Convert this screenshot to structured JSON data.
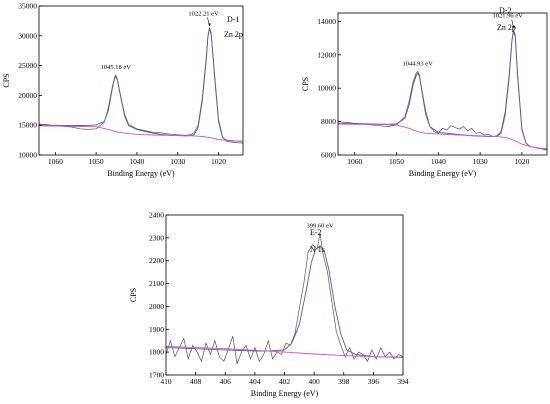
{
  "chart_data": [
    {
      "type": "line",
      "id": "zn-d1",
      "panel_label": "D-1",
      "element_label": "Zn 2p",
      "xlabel": "Binding Energy (eV)",
      "ylabel": "CPS",
      "xlim": [
        1064,
        1014
      ],
      "ylim": [
        10000,
        35000
      ],
      "xticks": [
        1060,
        1050,
        1040,
        1030,
        1020
      ],
      "yticks": [
        10000,
        15000,
        20000,
        25000,
        30000,
        35000
      ],
      "peaks": [
        {
          "x": 1045.18,
          "label": "1045.18 eV"
        },
        {
          "x": 1022.21,
          "label": "1022.21 eV"
        }
      ],
      "series": [
        {
          "color": "#555555",
          "x": [
            1064,
            1062,
            1060,
            1058,
            1056,
            1054,
            1052,
            1050,
            1048,
            1047,
            1046,
            1045.5,
            1045.2,
            1044.8,
            1044,
            1043,
            1042,
            1040,
            1038,
            1036,
            1034,
            1032,
            1030,
            1028,
            1027,
            1026,
            1025,
            1024,
            1023,
            1022.6,
            1022.2,
            1021.8,
            1021,
            1020,
            1019,
            1018,
            1016,
            1014
          ],
          "y": [
            15200,
            15100,
            14900,
            14800,
            14700,
            14400,
            14300,
            14400,
            15500,
            18000,
            21500,
            23000,
            23400,
            22800,
            20000,
            16800,
            15100,
            14400,
            14100,
            13800,
            13700,
            13500,
            13400,
            13300,
            13400,
            13700,
            15000,
            19500,
            26500,
            30000,
            31400,
            30500,
            24000,
            16000,
            13000,
            12300,
            12100,
            12000
          ]
        },
        {
          "color": "#5a5aa8",
          "x": [
            1064,
            1062,
            1060,
            1058,
            1056,
            1054,
            1052,
            1050,
            1048,
            1047,
            1046,
            1045.5,
            1045.2,
            1044.8,
            1044,
            1043,
            1042,
            1040,
            1038,
            1036,
            1034,
            1032,
            1030,
            1028,
            1027,
            1026,
            1025,
            1024,
            1023,
            1022.6,
            1022.2,
            1021.8,
            1021,
            1020,
            1019,
            1018,
            1016,
            1014
          ],
          "y": [
            15000,
            14990,
            14980,
            14970,
            14960,
            14950,
            14960,
            15050,
            15600,
            17500,
            21200,
            22800,
            23200,
            22600,
            19800,
            16500,
            14900,
            14300,
            13950,
            13650,
            13450,
            13300,
            13250,
            13200,
            13250,
            13400,
            14600,
            19000,
            26000,
            29800,
            31200,
            30200,
            23500,
            15600,
            12900,
            12500,
            12350,
            12300
          ]
        },
        {
          "color": "#cc55cc",
          "x": [
            1064,
            1060,
            1055,
            1050,
            1047,
            1045,
            1043,
            1040,
            1036,
            1030,
            1026,
            1024,
            1022,
            1020,
            1018,
            1016,
            1014
          ],
          "y": [
            14900,
            14850,
            14800,
            14750,
            14300,
            13900,
            13650,
            13450,
            13350,
            13250,
            13200,
            13100,
            12900,
            12600,
            12450,
            12350,
            12300
          ]
        }
      ]
    },
    {
      "type": "line",
      "id": "zn-d2",
      "panel_label": "D-2",
      "element_label": "Zn 2p",
      "xlabel": "Binding Energy (eV)",
      "ylabel": "CPS",
      "xlim": [
        1064,
        1014
      ],
      "ylim": [
        6000,
        14500
      ],
      "xticks": [
        1060,
        1050,
        1040,
        1030,
        1020
      ],
      "yticks": [
        6000,
        8000,
        10000,
        12000,
        14000
      ],
      "peaks": [
        {
          "x": 1044.93,
          "label": "1044.93 eV"
        },
        {
          "x": 1021.96,
          "label": "1021.96 eV"
        }
      ],
      "series": [
        {
          "color": "#555555",
          "x": [
            1064,
            1062,
            1060,
            1058,
            1056,
            1054,
            1052,
            1050,
            1048,
            1047,
            1046,
            1045.3,
            1044.9,
            1044.5,
            1044,
            1043,
            1042,
            1041,
            1040,
            1039,
            1038,
            1037,
            1036,
            1035,
            1034,
            1033,
            1032,
            1031,
            1030,
            1029,
            1028,
            1027,
            1026,
            1025,
            1024,
            1023,
            1022.4,
            1022,
            1021.6,
            1021,
            1020,
            1019,
            1018,
            1016,
            1014
          ],
          "y": [
            8000,
            7950,
            7900,
            7850,
            7800,
            7750,
            7700,
            7800,
            8300,
            9200,
            10400,
            10900,
            11000,
            10800,
            10000,
            8600,
            7700,
            7400,
            7300,
            7600,
            7500,
            7750,
            7650,
            7550,
            7700,
            7450,
            7600,
            7300,
            7350,
            7200,
            7250,
            7100,
            7150,
            7400,
            8600,
            11000,
            12900,
            13500,
            13200,
            10800,
            7600,
            6700,
            6500,
            6400,
            6300
          ]
        },
        {
          "color": "#5a5aa8",
          "x": [
            1064,
            1060,
            1056,
            1052,
            1050,
            1048,
            1047,
            1046,
            1045.3,
            1044.9,
            1044.5,
            1044,
            1043,
            1042,
            1040,
            1036,
            1032,
            1028,
            1026,
            1025,
            1024,
            1023,
            1022.4,
            1022,
            1021.6,
            1021,
            1020,
            1019,
            1018,
            1016,
            1014
          ],
          "y": [
            7900,
            7880,
            7860,
            7840,
            7860,
            8200,
            9000,
            10200,
            10750,
            10900,
            10700,
            9900,
            8400,
            7700,
            7350,
            7250,
            7150,
            7100,
            7120,
            7300,
            8400,
            10800,
            12800,
            13400,
            13100,
            10600,
            7500,
            6700,
            6500,
            6400,
            6350
          ]
        },
        {
          "color": "#cc55cc",
          "x": [
            1064,
            1060,
            1055,
            1050,
            1047,
            1045,
            1043,
            1040,
            1035,
            1030,
            1026,
            1024,
            1022,
            1020,
            1018,
            1016,
            1014
          ],
          "y": [
            7850,
            7840,
            7830,
            7800,
            7600,
            7400,
            7300,
            7250,
            7200,
            7150,
            7100,
            7050,
            6900,
            6650,
            6500,
            6420,
            6380
          ]
        }
      ]
    },
    {
      "type": "line",
      "id": "n1s-e2",
      "panel_label": "E-2",
      "element_label": "N 1s",
      "xlabel": "Binding Energy (eV)",
      "ylabel": "CPS",
      "xlim": [
        410,
        394
      ],
      "ylim": [
        1700,
        2400
      ],
      "xticks": [
        410,
        408,
        406,
        404,
        402,
        400,
        398,
        396,
        394
      ],
      "yticks": [
        1700,
        1800,
        1900,
        2000,
        2100,
        2200,
        2300,
        2400
      ],
      "peaks": [
        {
          "x": 399.6,
          "label": "399.60 eV"
        }
      ],
      "series": [
        {
          "color": "#555555",
          "x": [
            410,
            409.7,
            409.4,
            409.1,
            408.8,
            408.5,
            408.2,
            407.9,
            407.6,
            407.3,
            407.0,
            406.7,
            406.4,
            406.1,
            405.8,
            405.5,
            405.2,
            404.9,
            404.6,
            404.3,
            404.0,
            403.7,
            403.4,
            403.1,
            402.8,
            402.5,
            402.2,
            401.9,
            401.6,
            401.3,
            401.0,
            400.7,
            400.4,
            400.1,
            399.8,
            399.6,
            399.4,
            399.1,
            398.8,
            398.5,
            398.2,
            397.9,
            397.6,
            397.3,
            397.0,
            396.7,
            396.4,
            396.1,
            395.8,
            395.5,
            395.2,
            394.9,
            394.6,
            394.3,
            394.0
          ],
          "y": [
            1790,
            1850,
            1780,
            1820,
            1860,
            1770,
            1830,
            1800,
            1760,
            1840,
            1790,
            1850,
            1780,
            1760,
            1810,
            1870,
            1750,
            1800,
            1830,
            1770,
            1820,
            1760,
            1790,
            1850,
            1770,
            1800,
            1790,
            1840,
            1830,
            1880,
            1990,
            2100,
            2240,
            2270,
            2250,
            2320,
            2230,
            2150,
            2020,
            1890,
            1830,
            1780,
            1820,
            1770,
            1800,
            1790,
            1760,
            1810,
            1770,
            1820,
            1780,
            1800,
            1770,
            1790,
            1780
          ]
        },
        {
          "color": "#5a5aa8",
          "x": [
            410,
            408,
            406,
            404,
            403,
            402,
            401.5,
            401,
            400.5,
            400.2,
            399.9,
            399.6,
            399.3,
            399,
            398.6,
            398.2,
            397.8,
            397.2,
            396,
            394
          ],
          "y": [
            1820,
            1815,
            1810,
            1805,
            1805,
            1810,
            1840,
            1920,
            2080,
            2190,
            2250,
            2265,
            2240,
            2160,
            2000,
            1880,
            1810,
            1790,
            1780,
            1778
          ]
        },
        {
          "color": "#cc55cc",
          "x": [
            410,
            408,
            406,
            404,
            402,
            400,
            398,
            396,
            394
          ],
          "y": [
            1825,
            1820,
            1815,
            1808,
            1800,
            1792,
            1785,
            1780,
            1776
          ]
        }
      ]
    }
  ]
}
